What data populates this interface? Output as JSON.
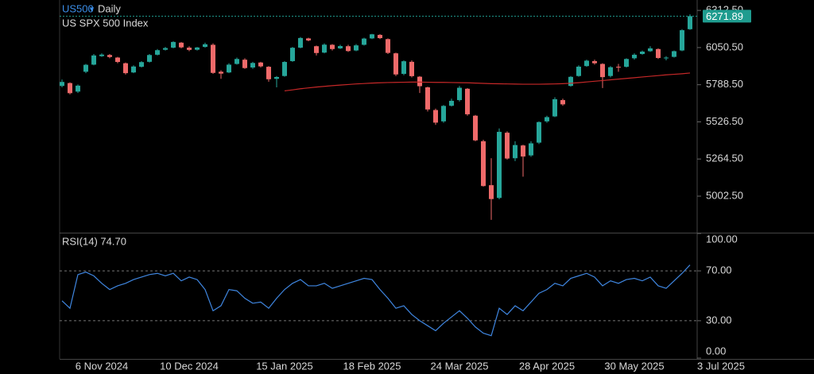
{
  "header": {
    "symbol": "US500",
    "interval": "Daily",
    "name": "US SPX 500 Index"
  },
  "chart_data": [
    {
      "type": "candlestick",
      "categories": [
        null,
        null,
        null,
        null,
        null,
        "6 Nov 2024",
        null,
        null,
        null,
        null,
        null,
        null,
        null,
        null,
        null,
        null,
        "10 Dec 2024",
        null,
        null,
        null,
        null,
        null,
        null,
        null,
        null,
        null,
        null,
        null,
        "15 Jan 2025",
        null,
        null,
        null,
        null,
        null,
        null,
        null,
        null,
        null,
        null,
        "18 Feb 2025",
        null,
        null,
        null,
        null,
        null,
        null,
        null,
        null,
        null,
        null,
        "24 Mar 2025",
        null,
        null,
        null,
        null,
        null,
        null,
        null,
        null,
        null,
        null,
        "28 Apr 2025",
        null,
        null,
        null,
        null,
        null,
        null,
        null,
        null,
        null,
        null,
        "30 May 2025",
        null,
        null,
        null,
        null,
        null,
        null,
        "3 Jul 2025"
      ],
      "open": [
        5780,
        5800,
        5740,
        5880,
        5930,
        5990,
        5998,
        5980,
        5940,
        5875,
        5915,
        5950,
        6000,
        6035,
        6050,
        6085,
        6050,
        6035,
        6055,
        6070,
        5880,
        5875,
        5935,
        5965,
        5910,
        5945,
        5915,
        5830,
        5850,
        5955,
        6050,
        6115,
        6060,
        6015,
        6070,
        6045,
        6060,
        6030,
        6070,
        6115,
        6140,
        6110,
        6010,
        5865,
        5950,
        5845,
        5770,
        5610,
        5530,
        5640,
        5680,
        5760,
        5570,
        5390,
        5080,
        4990,
        5450,
        5270,
        5360,
        5290,
        5380,
        5530,
        5565,
        5680,
        5780,
        5850,
        5920,
        5955,
        5935,
        5850,
        5915,
        5915,
        5975,
        6005,
        6025,
        6040,
        5975,
        5985,
        6030,
        6180
      ],
      "high": [
        5825,
        5805,
        5790,
        5935,
        6005,
        6010,
        6005,
        5985,
        5945,
        5925,
        5955,
        6005,
        6040,
        6055,
        6095,
        6090,
        6060,
        6055,
        6085,
        6080,
        5890,
        5940,
        5980,
        5975,
        5950,
        5950,
        5920,
        5850,
        5955,
        6055,
        6125,
        6120,
        6065,
        6080,
        6075,
        6070,
        6070,
        6075,
        6120,
        6147,
        6145,
        6115,
        6015,
        5960,
        5960,
        5850,
        5775,
        5620,
        5645,
        5690,
        5780,
        5765,
        5575,
        5400,
        5270,
        5480,
        5460,
        5390,
        5365,
        5390,
        5530,
        5570,
        5700,
        5690,
        5850,
        5925,
        5965,
        5965,
        5940,
        5920,
        5935,
        5975,
        6010,
        6030,
        6060,
        6045,
        5990,
        6030,
        6180,
        6285
      ],
      "low": [
        5770,
        5720,
        5730,
        5870,
        5925,
        5985,
        5975,
        5940,
        5860,
        5870,
        5910,
        5945,
        5995,
        6030,
        6045,
        6045,
        6025,
        6030,
        6050,
        5865,
        5830,
        5870,
        5930,
        5900,
        5900,
        5910,
        5810,
        5770,
        5845,
        5950,
        6045,
        6095,
        5995,
        6010,
        6030,
        6040,
        6020,
        6025,
        6065,
        6110,
        6110,
        6005,
        5850,
        5855,
        5840,
        5730,
        5600,
        5505,
        5520,
        5635,
        5670,
        5570,
        5390,
        5070,
        4835,
        4980,
        5260,
        5250,
        5140,
        5280,
        5370,
        5520,
        5560,
        5640,
        5775,
        5845,
        5915,
        5930,
        5765,
        5840,
        5880,
        5910,
        5965,
        6000,
        6020,
        5970,
        5960,
        5980,
        6025,
        6175
      ],
      "close": [
        5808,
        5729,
        5782,
        5929,
        5995,
        6001,
        5984,
        5949,
        5870,
        5917,
        5948,
        5998,
        6032,
        6047,
        6090,
        6052,
        6034,
        6051,
        6074,
        5872,
        5867,
        5930,
        5970,
        5906,
        5942,
        5918,
        5827,
        5843,
        5949,
        6049,
        6118,
        6101,
        6012,
        6071,
        6040,
        6061,
        6026,
        6066,
        6114,
        6144,
        6117,
        6013,
        5861,
        5954,
        5849,
        5778,
        5614,
        5521,
        5639,
        5675,
        5767,
        5580,
        5396,
        5074,
        4982,
        5456,
        5268,
        5363,
        5282,
        5375,
        5525,
        5560,
        5686,
        5650,
        5844,
        5916,
        5958,
        5940,
        5842,
        5912,
        5911,
        5970,
        6000,
        6022,
        6045,
        5977,
        5980,
        6025,
        6173,
        6271.89
      ],
      "up_color": "#26a69a",
      "down_color": "#ef6a6a",
      "overlay": {
        "color": "#c62828",
        "values": [
          null,
          null,
          null,
          null,
          null,
          null,
          null,
          null,
          null,
          null,
          null,
          null,
          null,
          null,
          null,
          null,
          null,
          null,
          null,
          null,
          null,
          null,
          null,
          null,
          null,
          null,
          null,
          null,
          5745,
          5752,
          5760,
          5766,
          5772,
          5777,
          5782,
          5786,
          5790,
          5794,
          5797,
          5800,
          5802,
          5804,
          5805,
          5806,
          5807,
          5807,
          5806,
          5805,
          5805,
          5804,
          5803,
          5802,
          5800,
          5798,
          5796,
          5795,
          5794,
          5793,
          5792,
          5792,
          5792,
          5793,
          5794,
          5796,
          5799,
          5803,
          5808,
          5813,
          5818,
          5823,
          5828,
          5833,
          5838,
          5843,
          5848,
          5853,
          5858,
          5862,
          5866,
          5871
        ]
      },
      "last_price": 6271.89,
      "last_price_color": "#1f9c8f",
      "ylim": [
        4745,
        6386
      ],
      "yticks": [
        {
          "value": 5002.5,
          "label": "5002.50"
        },
        {
          "value": 5264.5,
          "label": "5264.50"
        },
        {
          "value": 5526.5,
          "label": "5526.50"
        },
        {
          "value": 5788.5,
          "label": "5788.50"
        },
        {
          "value": 6050.5,
          "label": "6050.50"
        },
        {
          "value": 6312.5,
          "label": "6312.50"
        }
      ]
    },
    {
      "type": "line",
      "title": "RSI(14) 74.70",
      "color": "#3f86e0",
      "values": [
        46,
        40,
        67,
        69,
        66,
        60,
        55,
        58,
        60,
        63,
        65,
        67,
        68,
        66,
        68,
        62,
        65,
        63,
        55,
        38,
        42,
        55,
        54,
        48,
        44,
        45,
        40,
        48,
        55,
        60,
        63,
        58,
        58,
        60,
        56,
        58,
        60,
        62,
        64,
        63,
        55,
        48,
        40,
        42,
        35,
        30,
        26,
        22,
        28,
        33,
        38,
        32,
        25,
        20,
        18,
        40,
        35,
        42,
        38,
        45,
        52,
        55,
        60,
        58,
        64,
        66,
        68,
        65,
        58,
        62,
        60,
        63,
        64,
        62,
        65,
        58,
        56,
        62,
        68,
        74.7
      ],
      "ylim": [
        0,
        100
      ],
      "levels": [
        70,
        30
      ],
      "yticks": [
        {
          "value": 0,
          "label": "0.00"
        },
        {
          "value": 30,
          "label": "30.00"
        },
        {
          "value": 70,
          "label": "70.00"
        },
        {
          "value": 100,
          "label": "100.00"
        }
      ]
    }
  ]
}
